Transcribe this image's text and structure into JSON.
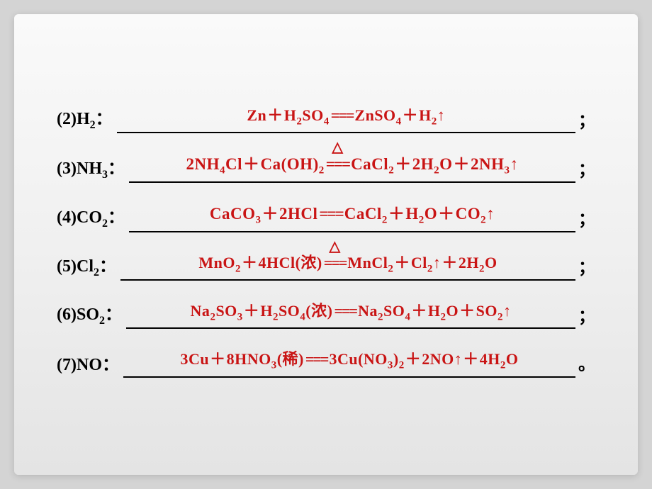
{
  "equations": [
    {
      "label_prefix": "(2)H",
      "label_sub": "2",
      "label_suffix": "：",
      "punct": "；",
      "parts": [
        "Zn",
        "+",
        "H",
        "_2",
        "SO",
        "_4",
        "==",
        "ZnSO",
        "_4",
        "+",
        "H",
        "_2",
        "↑"
      ],
      "triangle": false
    },
    {
      "label_prefix": "(3)NH",
      "label_sub": "3",
      "label_suffix": "：",
      "punct": "；",
      "parts": [
        "2NH",
        "_4",
        "Cl",
        "+",
        "Ca(OH)",
        "_2",
        "==",
        "CaCl",
        "_2",
        "+",
        "2H",
        "_2",
        "O",
        "+",
        "2NH",
        "_3",
        "↑"
      ],
      "triangle": true,
      "triangle_after": 7
    },
    {
      "label_prefix": "(4)CO",
      "label_sub": "2",
      "label_suffix": "：",
      "punct": "；",
      "parts": [
        "CaCO",
        "_3",
        "+",
        "2HCl",
        "==",
        "CaCl",
        "_2",
        "+",
        "H",
        "_2",
        "O",
        "+",
        "CO",
        "_2",
        "↑"
      ],
      "triangle": false
    },
    {
      "label_prefix": "(5)Cl",
      "label_sub": "2",
      "label_suffix": "：",
      "punct": "；",
      "parts": [
        "MnO",
        "_2",
        "+",
        "4HCl(浓)",
        "==",
        "MnCl",
        "_2",
        "+",
        "Cl",
        "_2",
        "↑",
        "+",
        "2H",
        "_2",
        "O"
      ],
      "triangle": true,
      "triangle_after": 5
    },
    {
      "label_prefix": "(6)SO",
      "label_sub": "2",
      "label_suffix": "：",
      "punct": "；",
      "parts": [
        "Na",
        "_2",
        "SO",
        "_3",
        "+",
        "H",
        "_2",
        "SO",
        "_4",
        "(浓)",
        "==",
        "Na",
        "_2",
        "SO",
        "_4",
        "+",
        "H",
        "_2",
        "O",
        "+",
        "SO",
        "_2",
        "↑"
      ],
      "triangle": false
    },
    {
      "label_prefix": "(7)NO",
      "label_sub": "",
      "label_suffix": "：",
      "punct": "。",
      "parts": [
        "3Cu",
        "+",
        "8HNO",
        "_3",
        "(稀)",
        "==",
        "3Cu(NO",
        "_3",
        ")",
        "_2",
        "+",
        "2NO",
        "↑",
        "+",
        "4H",
        "_2",
        "O"
      ],
      "triangle": false
    }
  ],
  "colors": {
    "answer": "#c91414",
    "label": "#000000",
    "bg_start": "#fafafa",
    "bg_end": "#e4e4e4",
    "outer_bg": "#d4d4d4"
  }
}
